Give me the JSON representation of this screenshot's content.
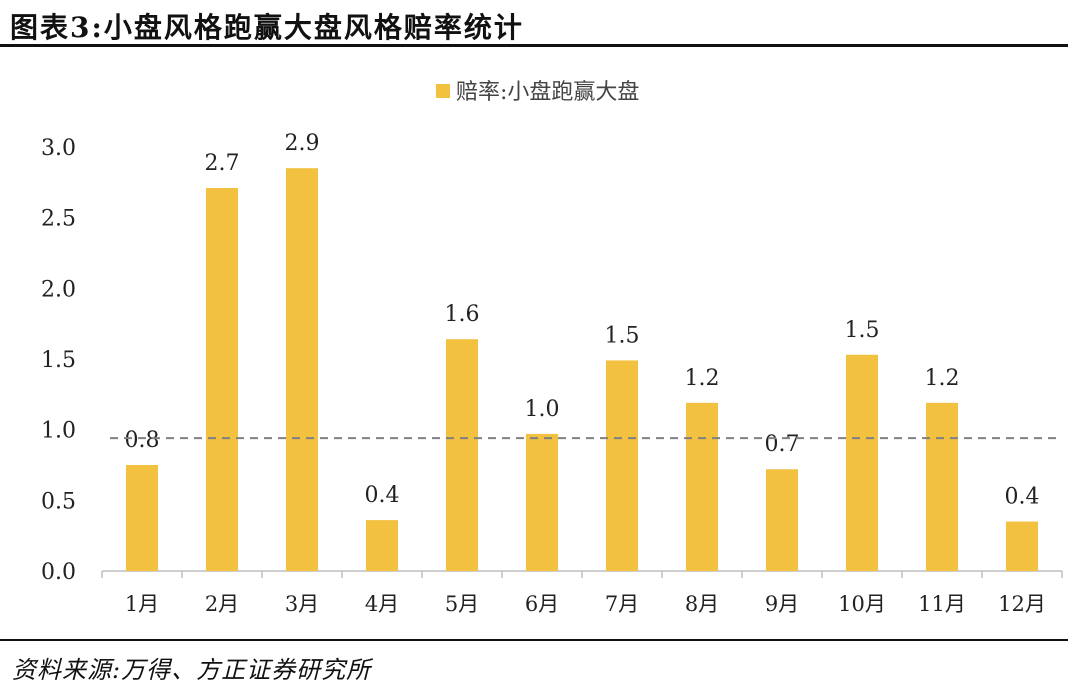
{
  "header": {
    "title": "图表3:小盘风格跑赢大盘风格赔率统计"
  },
  "footer": {
    "source": "资料来源:万得、方正证券研究所"
  },
  "colors": {
    "bar": "#F2C140",
    "reference_line": "#808080"
  },
  "chart_data": {
    "type": "bar",
    "title": "图表3:小盘风格跑赢大盘风格赔率统计",
    "categories": [
      "1月",
      "2月",
      "3月",
      "4月",
      "5月",
      "6月",
      "7月",
      "8月",
      "9月",
      "10月",
      "11月",
      "12月"
    ],
    "series": [
      {
        "name": "赔率:小盘跑赢大盘",
        "values": [
          0.75,
          2.71,
          2.85,
          0.36,
          1.64,
          0.97,
          1.49,
          1.19,
          0.72,
          1.53,
          1.19,
          0.35
        ],
        "labels": [
          "0.8",
          "2.7",
          "2.9",
          "0.4",
          "1.6",
          "1.0",
          "1.5",
          "1.2",
          "0.7",
          "1.5",
          "1.2",
          "0.4"
        ]
      }
    ],
    "reference_line": {
      "value": 0.94,
      "style": "dashed"
    },
    "ylim": [
      0,
      3.0
    ],
    "yticks": [
      "0.0",
      "0.5",
      "1.0",
      "1.5",
      "2.0",
      "2.5",
      "3.0"
    ],
    "xlabel": "",
    "ylabel": "",
    "legend": "top-center",
    "grid": false
  }
}
